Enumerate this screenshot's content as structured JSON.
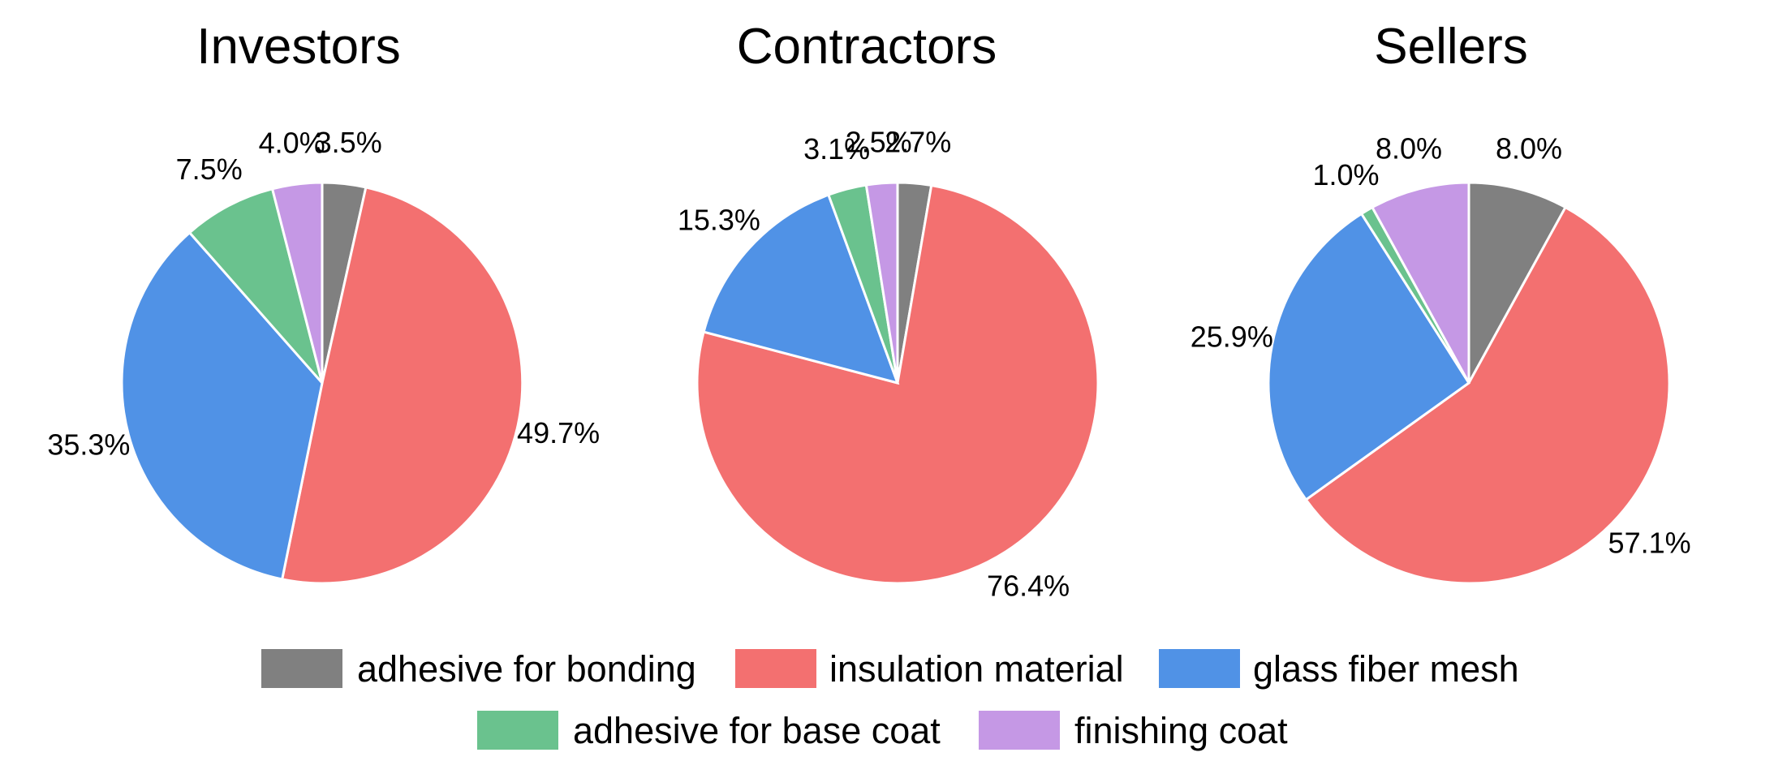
{
  "chart_data": [
    {
      "type": "pie",
      "title": "Investors",
      "categories": [
        "adhesive for bonding",
        "insulation material",
        "glass fiber mesh",
        "adhesive for base coat",
        "finishing coat"
      ],
      "values": [
        3.5,
        49.7,
        35.3,
        7.5,
        4.0
      ],
      "labels": [
        "3.5%",
        "49.7%",
        "35.3%",
        "7.5%",
        "4.0%"
      ]
    },
    {
      "type": "pie",
      "title": "Contractors",
      "categories": [
        "adhesive for bonding",
        "insulation material",
        "glass fiber mesh",
        "adhesive for base coat",
        "finishing coat"
      ],
      "values": [
        2.7,
        76.4,
        15.3,
        3.1,
        2.5
      ],
      "labels": [
        "2.7%",
        "76.4%",
        "15.3%",
        "3.1%",
        "2.5%"
      ]
    },
    {
      "type": "pie",
      "title": "Sellers",
      "categories": [
        "adhesive for bonding",
        "insulation material",
        "glass fiber mesh",
        "adhesive for base coat",
        "finishing coat"
      ],
      "values": [
        8.0,
        57.1,
        25.9,
        1.0,
        8.0
      ],
      "labels": [
        "8.0%",
        "57.1%",
        "25.9%",
        "1.0%",
        "8.0%"
      ]
    }
  ],
  "legend": {
    "placement": "bottom-center",
    "items": [
      {
        "label": "adhesive for bonding",
        "color": "#808080"
      },
      {
        "label": "insulation material",
        "color": "#F37070"
      },
      {
        "label": "glass fiber mesh",
        "color": "#5092E6"
      },
      {
        "label": "adhesive for base coat",
        "color": "#6AC28E"
      },
      {
        "label": "finishing coat",
        "color": "#C598E5"
      }
    ]
  }
}
